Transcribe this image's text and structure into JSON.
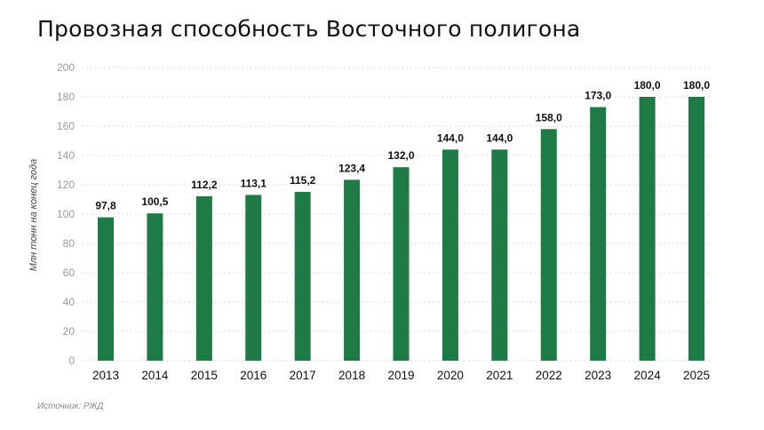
{
  "title": "Провозная способность Восточного полигона",
  "source": "Источник: РЖД",
  "colors": {
    "bar": "#1e7b45",
    "grid": "#d9d9d9"
  },
  "chart_data": {
    "type": "bar",
    "title": "Провозная способность Восточного полигона",
    "xlabel": "",
    "ylabel": "Млн тонн на конец года",
    "ylim": [
      0,
      200
    ],
    "yticks": [
      "0",
      "20",
      "40",
      "60",
      "80",
      "100",
      "120",
      "140",
      "160",
      "180",
      "200"
    ],
    "grid": true,
    "legend": "none",
    "categories": [
      "2013",
      "2014",
      "2015",
      "2016",
      "2017",
      "2018",
      "2019",
      "2020",
      "2021",
      "2022",
      "2023",
      "2024",
      "2025"
    ],
    "values": [
      97.8,
      100.5,
      112.2,
      113.1,
      115.2,
      123.4,
      132.0,
      144.0,
      144.0,
      158.0,
      173.0,
      180.0,
      180.0
    ],
    "value_labels": [
      "97,8",
      "100,5",
      "112,2",
      "113,1",
      "115,2",
      "123,4",
      "132,0",
      "144,0",
      "144,0",
      "158,0",
      "173,0",
      "180,0",
      "180,0"
    ]
  }
}
